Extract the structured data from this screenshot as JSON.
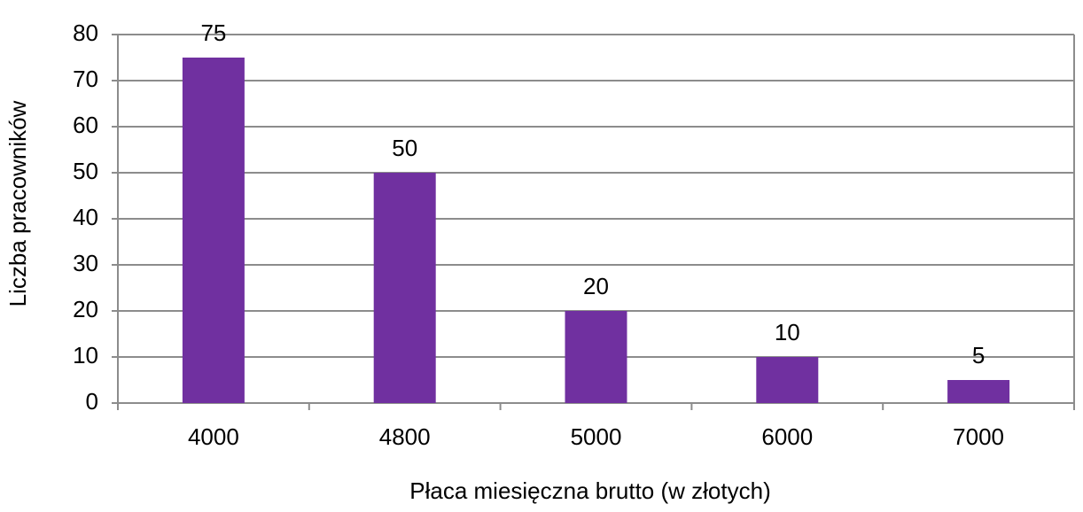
{
  "chart_data": {
    "type": "bar",
    "x_label": "Płaca miesięczna brutto (w złotych)",
    "y_label": "Liczba pracowników",
    "categories": [
      "4000",
      "4800",
      "5000",
      "6000",
      "7000"
    ],
    "values": [
      75,
      50,
      20,
      10,
      5
    ],
    "color": "#7030a0",
    "ylim": [
      0,
      80
    ],
    "yticks": [
      0,
      10,
      20,
      30,
      40,
      50,
      60,
      70,
      80
    ],
    "grid": true
  }
}
